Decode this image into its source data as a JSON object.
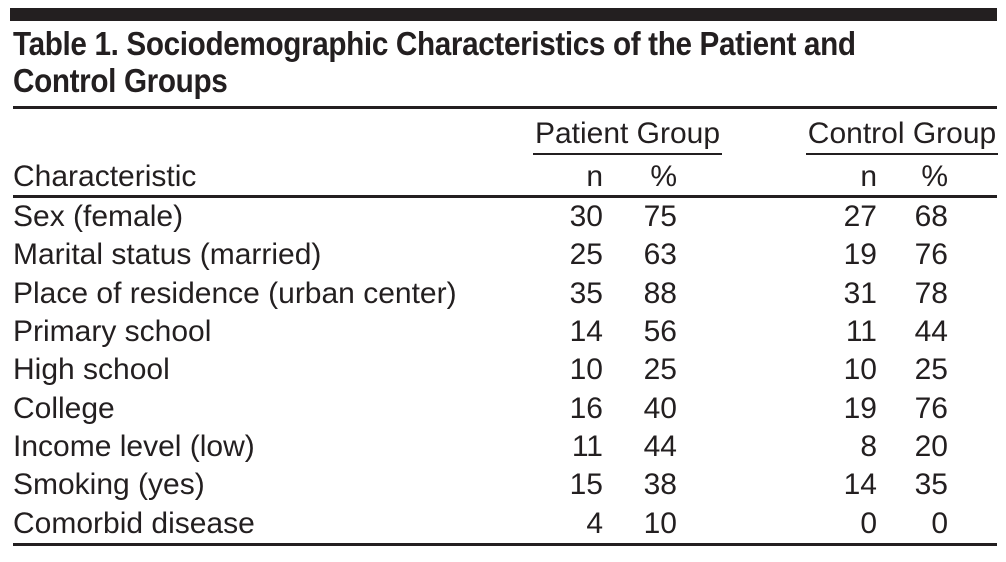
{
  "table": {
    "title_lines": [
      "Table 1. Sociodemographic Characteristics of the Patient and",
      "Control Groups"
    ],
    "row_header": "Characteristic",
    "column_groups": [
      {
        "label": "Patient Group",
        "sub_columns": [
          "n",
          "%"
        ]
      },
      {
        "label": "Control Group",
        "sub_columns": [
          "n",
          "%"
        ]
      }
    ],
    "rows": [
      {
        "label": "Sex (female)",
        "patient_n": 30,
        "patient_pct": 75,
        "control_n": 27,
        "control_pct": 68
      },
      {
        "label": "Marital status (married)",
        "patient_n": 25,
        "patient_pct": 63,
        "control_n": 19,
        "control_pct": 76
      },
      {
        "label": "Place of residence (urban center)",
        "patient_n": 35,
        "patient_pct": 88,
        "control_n": 31,
        "control_pct": 78
      },
      {
        "label": "Primary school",
        "patient_n": 14,
        "patient_pct": 56,
        "control_n": 11,
        "control_pct": 44
      },
      {
        "label": "High school",
        "patient_n": 10,
        "patient_pct": 25,
        "control_n": 10,
        "control_pct": 25
      },
      {
        "label": "College",
        "patient_n": 16,
        "patient_pct": 40,
        "control_n": 19,
        "control_pct": 76
      },
      {
        "label": "Income level (low)",
        "patient_n": 11,
        "patient_pct": 44,
        "control_n": 8,
        "control_pct": 20
      },
      {
        "label": "Smoking (yes)",
        "patient_n": 15,
        "patient_pct": 38,
        "control_n": 14,
        "control_pct": 35
      },
      {
        "label": "Comorbid disease",
        "patient_n": 4,
        "patient_pct": 10,
        "control_n": 0,
        "control_pct": 0
      }
    ]
  },
  "colors": {
    "text": "#231f20",
    "rule": "#231f20",
    "background": "#ffffff"
  }
}
